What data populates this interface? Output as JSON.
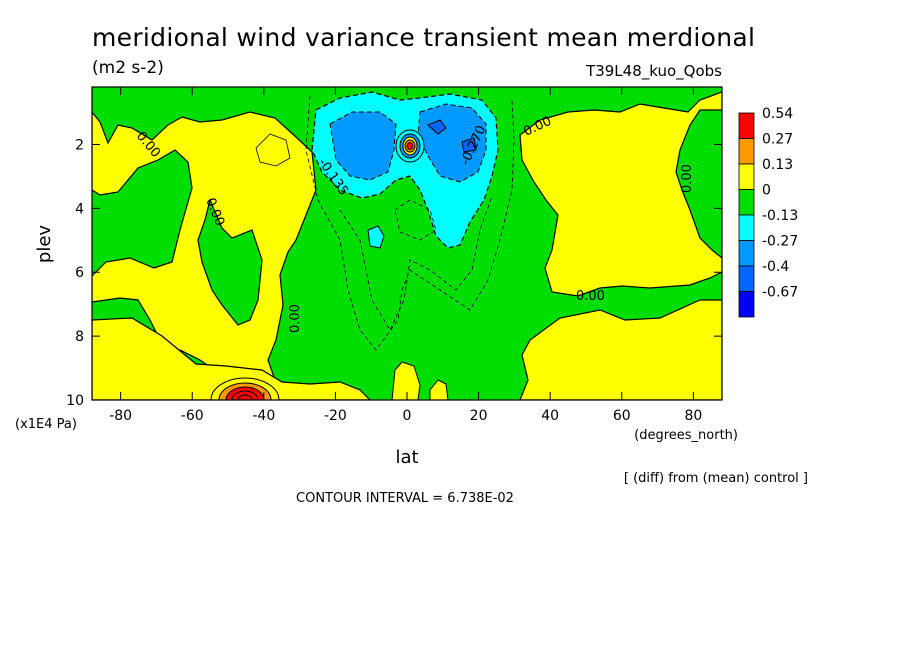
{
  "chart_data": {
    "type": "heatmap",
    "title": "meridional wind variance transient mean merdional",
    "units": "(m2 s-2)",
    "run_name": "T39L48_kuo_Qobs",
    "xlabel": "lat",
    "x_units": "(degrees_north)",
    "ylabel": "plev",
    "y_units": "(x1E4 Pa)",
    "xlim": [
      -88,
      88
    ],
    "ylim": [
      10,
      0.2
    ],
    "x_ticks": [
      -80,
      -60,
      -40,
      -20,
      0,
      20,
      40,
      60,
      80
    ],
    "x_tick_labels": [
      "-80",
      "-60",
      "-40",
      "-20",
      "0",
      "20",
      "40",
      "60",
      "80"
    ],
    "y_ticks": [
      2,
      4,
      6,
      8,
      10
    ],
    "y_tick_labels": [
      "2",
      "4",
      "6",
      "8",
      "10"
    ],
    "colorbar": {
      "levels": [
        "0.54",
        "0.27",
        "0.13",
        "0",
        "-0.13",
        "-0.27",
        "-0.4",
        "-0.67"
      ],
      "colors": [
        "#ff0000",
        "#ff9900",
        "#ffff00",
        "#00dd00",
        "#00ffff",
        "#0099ff",
        "#0066ff",
        "#0000ff"
      ]
    },
    "contour_labels": [
      "0.00",
      "0.00",
      "0.00",
      "0.00",
      "0.00",
      "0.00",
      "-0.135",
      "-0.270"
    ],
    "contour_interval_text": "CONTOUR INTERVAL = 6.738E-02",
    "footnote": "[ (diff) from (mean) control ]"
  }
}
